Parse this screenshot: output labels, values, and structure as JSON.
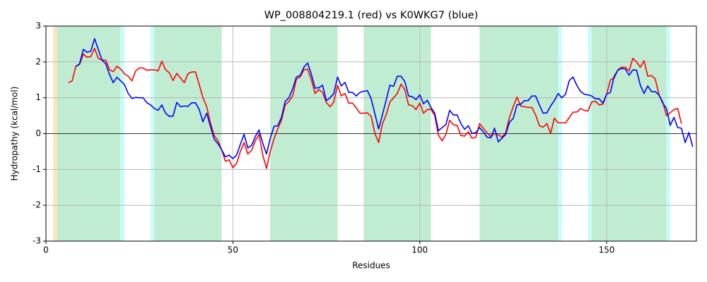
{
  "chart_data": {
    "type": "line",
    "title": "WP_008804219.1 (red) vs K0WKG7 (blue)",
    "x_label": "Residues",
    "y_label": "Hydropathy (kcal/mol)",
    "xlim": [
      0,
      174
    ],
    "ylim": [
      -3,
      3
    ],
    "xticks": [
      0,
      50,
      100,
      150
    ],
    "yticks": [
      -3,
      -2,
      -1,
      0,
      1,
      2,
      3
    ],
    "grid": true,
    "reference_line": 0,
    "regions": [
      {
        "start": 1.9,
        "end": 3.0,
        "color": "#fde5c0"
      },
      {
        "start": 3.0,
        "end": 19.9,
        "color": "#c0ecd2"
      },
      {
        "start": 19.9,
        "end": 21.0,
        "color": "#c8fbfb"
      },
      {
        "start": 28.0,
        "end": 29.0,
        "color": "#c8fbfb"
      },
      {
        "start": 29.0,
        "end": 47.0,
        "color": "#c0ecd2"
      },
      {
        "start": 60.0,
        "end": 78.0,
        "color": "#c0ecd2"
      },
      {
        "start": 85.0,
        "end": 103.0,
        "color": "#c0ecd2"
      },
      {
        "start": 116.0,
        "end": 137.0,
        "color": "#c0ecd2"
      },
      {
        "start": 137.0,
        "end": 138.0,
        "color": "#c8fbfb"
      },
      {
        "start": 145.0,
        "end": 146.0,
        "color": "#c8fbfb"
      },
      {
        "start": 146.0,
        "end": 166.0,
        "color": "#c0ecd2"
      },
      {
        "start": 166.0,
        "end": 167.0,
        "color": "#c8fbfb"
      }
    ],
    "x": [
      6,
      7,
      8,
      9,
      10,
      11,
      12,
      13,
      14,
      15,
      16,
      17,
      18,
      19,
      20,
      21,
      22,
      23,
      24,
      25,
      26,
      27,
      28,
      29,
      30,
      31,
      32,
      33,
      34,
      35,
      36,
      37,
      38,
      39,
      40,
      41,
      42,
      43,
      44,
      45,
      46,
      47,
      48,
      49,
      50,
      51,
      52,
      53,
      54,
      55,
      56,
      57,
      58,
      59,
      60,
      61,
      62,
      63,
      64,
      65,
      66,
      67,
      68,
      69,
      70,
      71,
      72,
      73,
      74,
      75,
      76,
      77,
      78,
      79,
      80,
      81,
      82,
      83,
      84,
      85,
      86,
      87,
      88,
      89,
      90,
      91,
      92,
      93,
      94,
      95,
      96,
      97,
      98,
      99,
      100,
      101,
      102,
      103,
      104,
      105,
      106,
      107,
      108,
      109,
      110,
      111,
      112,
      113,
      114,
      115,
      116,
      117,
      118,
      119,
      120,
      121,
      122,
      123,
      124,
      125,
      126,
      127,
      128,
      129,
      130,
      131,
      132,
      133,
      134,
      135,
      136,
      137,
      138,
      139,
      140,
      141,
      142,
      143,
      144,
      145,
      146,
      147,
      148,
      149,
      150,
      151,
      152,
      153,
      154,
      155,
      156,
      157,
      158,
      159,
      160,
      161,
      162,
      163,
      164,
      165,
      166,
      167,
      168,
      169,
      170,
      171,
      172,
      173
    ],
    "series": [
      {
        "color": "red",
        "values": [
          1.42,
          1.47,
          1.88,
          1.93,
          2.22,
          2.13,
          2.15,
          2.38,
          2.1,
          2.05,
          2.05,
          1.78,
          1.73,
          1.88,
          1.8,
          1.67,
          1.6,
          1.47,
          1.75,
          1.83,
          1.83,
          1.77,
          1.78,
          1.78,
          1.75,
          2.02,
          1.78,
          1.7,
          1.48,
          1.68,
          1.55,
          1.42,
          1.67,
          1.72,
          1.72,
          1.37,
          1.0,
          0.75,
          0.3,
          -0.05,
          -0.2,
          -0.45,
          -0.77,
          -0.73,
          -0.95,
          -0.83,
          -0.5,
          -0.25,
          -0.57,
          -0.47,
          -0.2,
          -0.02,
          -0.6,
          -0.97,
          -0.5,
          -0.15,
          0.13,
          0.37,
          0.8,
          0.9,
          1.05,
          1.52,
          1.58,
          1.78,
          1.8,
          1.5,
          1.12,
          1.23,
          1.15,
          0.87,
          0.75,
          0.88,
          1.35,
          1.05,
          1.12,
          0.85,
          0.85,
          0.72,
          0.57,
          0.57,
          0.58,
          0.48,
          0.0,
          -0.25,
          0.27,
          0.52,
          0.88,
          1.0,
          1.12,
          1.38,
          1.22,
          0.8,
          0.78,
          0.67,
          0.85,
          0.57,
          0.67,
          0.68,
          0.5,
          -0.05,
          -0.2,
          -0.02,
          0.37,
          0.25,
          0.23,
          -0.05,
          -0.07,
          0.05,
          -0.13,
          -0.1,
          0.28,
          0.15,
          0.02,
          -0.08,
          0.0,
          -0.03,
          -0.1,
          0.03,
          0.45,
          0.75,
          1.02,
          0.77,
          0.75,
          0.73,
          0.73,
          0.52,
          0.22,
          0.18,
          0.28,
          0.0,
          0.43,
          0.3,
          0.3,
          0.3,
          0.45,
          0.6,
          0.6,
          0.7,
          0.65,
          0.63,
          0.88,
          0.9,
          0.8,
          0.82,
          1.1,
          1.5,
          1.55,
          1.78,
          1.85,
          1.85,
          1.75,
          2.1,
          2.0,
          1.85,
          2.03,
          1.6,
          1.62,
          1.52,
          1.08,
          0.88,
          0.5,
          0.58,
          0.67,
          0.7,
          0.28,
          null,
          null,
          null
        ]
      },
      {
        "color": "blue",
        "values": [
          null,
          null,
          1.87,
          1.95,
          2.35,
          2.27,
          2.3,
          2.65,
          2.35,
          2.05,
          1.95,
          1.65,
          1.42,
          1.57,
          1.47,
          1.37,
          1.12,
          0.98,
          1.01,
          1.0,
          1.0,
          0.86,
          0.8,
          0.7,
          0.65,
          0.8,
          0.57,
          0.48,
          0.49,
          0.87,
          0.75,
          0.77,
          0.76,
          0.86,
          0.86,
          0.67,
          0.33,
          0.57,
          0.2,
          -0.15,
          -0.28,
          -0.45,
          -0.65,
          -0.6,
          -0.7,
          -0.6,
          -0.3,
          -0.02,
          -0.4,
          -0.33,
          -0.08,
          0.1,
          -0.27,
          -0.57,
          -0.13,
          0.2,
          0.22,
          0.45,
          0.9,
          1.0,
          1.25,
          1.58,
          1.62,
          1.85,
          1.97,
          1.65,
          1.27,
          1.28,
          1.35,
          0.92,
          1.0,
          1.12,
          1.58,
          1.33,
          1.43,
          1.15,
          1.15,
          1.05,
          1.15,
          1.18,
          1.2,
          0.97,
          0.55,
          0.13,
          0.52,
          0.93,
          1.35,
          1.32,
          1.6,
          1.6,
          1.45,
          1.05,
          1.03,
          0.95,
          1.08,
          0.83,
          0.93,
          0.73,
          0.57,
          0.08,
          0.17,
          0.25,
          0.65,
          0.52,
          0.52,
          0.28,
          0.12,
          0.22,
          0.0,
          0.03,
          0.17,
          0.05,
          -0.1,
          -0.12,
          0.15,
          -0.23,
          -0.13,
          -0.02,
          0.32,
          0.42,
          0.8,
          0.82,
          0.92,
          0.92,
          1.05,
          1.05,
          0.8,
          0.57,
          0.58,
          0.77,
          0.92,
          1.12,
          1.0,
          1.1,
          1.48,
          1.58,
          1.35,
          1.18,
          1.1,
          1.08,
          1.05,
          0.97,
          0.97,
          0.85,
          1.1,
          1.15,
          1.6,
          1.77,
          1.82,
          1.8,
          1.63,
          1.78,
          1.77,
          1.35,
          1.12,
          1.33,
          1.17,
          1.17,
          1.08,
          0.85,
          0.7,
          0.23,
          0.45,
          0.17,
          0.15,
          -0.25,
          0.03,
          -0.37
        ]
      }
    ]
  }
}
